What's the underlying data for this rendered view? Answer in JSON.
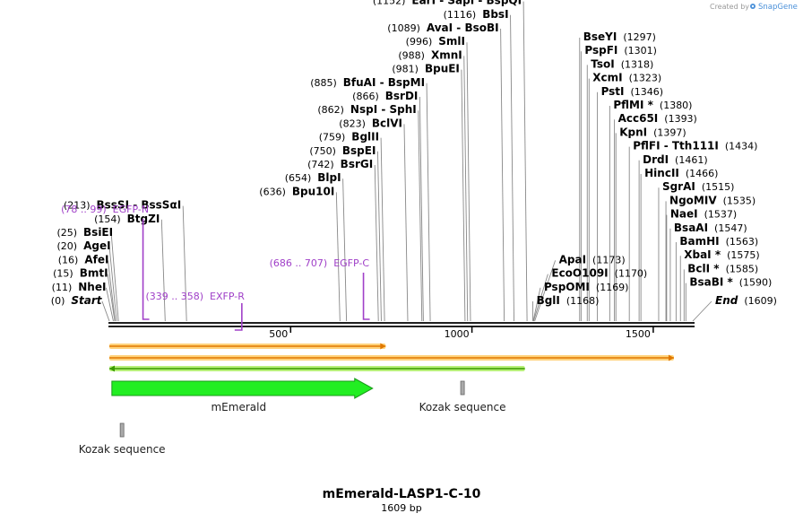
{
  "watermark": {
    "text": "Created by",
    "brand": "SnapGene"
  },
  "plasmid": {
    "name": "mEmerald-LASP1-C-10",
    "length_label": "1609 bp",
    "length": 1609
  },
  "ticks": [
    {
      "pos": 500,
      "label": "500"
    },
    {
      "pos": 1000,
      "label": "1000"
    },
    {
      "pos": 1500,
      "label": "1500"
    }
  ],
  "left_sites": [
    {
      "name": "Start",
      "pos": 0,
      "pos_label": "(0)",
      "italic": true
    },
    {
      "name": "NheI",
      "pos": 11,
      "pos_label": "(11)"
    },
    {
      "name": "BmtI",
      "pos": 15,
      "pos_label": "(15)"
    },
    {
      "name": "AfeI",
      "pos": 16,
      "pos_label": "(16)"
    },
    {
      "name": "AgeI",
      "pos": 20,
      "pos_label": "(20)"
    },
    {
      "name": "BsiEI",
      "pos": 25,
      "pos_label": "(25)"
    },
    {
      "name": "BtgZI",
      "pos": 154,
      "pos_label": "(154)"
    },
    {
      "name": "BssSI - BssSαI",
      "pos": 213,
      "pos_label": "(213)"
    },
    {
      "name": "Bpu10I",
      "pos": 636,
      "pos_label": "(636)"
    },
    {
      "name": "BlpI",
      "pos": 654,
      "pos_label": "(654)"
    },
    {
      "name": "BsrGI",
      "pos": 742,
      "pos_label": "(742)"
    },
    {
      "name": "BspEI",
      "pos": 750,
      "pos_label": "(750)"
    },
    {
      "name": "BglII",
      "pos": 759,
      "pos_label": "(759)"
    },
    {
      "name": "BclVI",
      "pos": 823,
      "pos_label": "(823)"
    },
    {
      "name": "NspI - SphI",
      "pos": 862,
      "pos_label": "(862)"
    },
    {
      "name": "BsrDI",
      "pos": 866,
      "pos_label": "(866)"
    },
    {
      "name": "BfuAI - BspMI",
      "pos": 885,
      "pos_label": "(885)"
    },
    {
      "name": "BpuEI",
      "pos": 981,
      "pos_label": "(981)"
    },
    {
      "name": "XmnI",
      "pos": 988,
      "pos_label": "(988)"
    },
    {
      "name": "SmlI",
      "pos": 996,
      "pos_label": "(996)"
    },
    {
      "name": "AvaI - BsoBI",
      "pos": 1089,
      "pos_label": "(1089)"
    },
    {
      "name": "BbsI",
      "pos": 1116,
      "pos_label": "(1116)"
    },
    {
      "name": "EarI - SapI - BspQI",
      "pos": 1152,
      "pos_label": "(1152)"
    }
  ],
  "right_sites": [
    {
      "name": "BglI",
      "pos": 1168,
      "pos_label": "(1168)"
    },
    {
      "name": "PspOMI",
      "pos": 1169,
      "pos_label": "(1169)"
    },
    {
      "name": "EcoO109I",
      "pos": 1170,
      "pos_label": "(1170)"
    },
    {
      "name": "ApaI",
      "pos": 1173,
      "pos_label": "(1173)"
    },
    {
      "name": "BseYI",
      "pos": 1297,
      "pos_label": "(1297)"
    },
    {
      "name": "PspFI",
      "pos": 1301,
      "pos_label": "(1301)"
    },
    {
      "name": "TsoI",
      "pos": 1318,
      "pos_label": "(1318)"
    },
    {
      "name": "XcmI",
      "pos": 1323,
      "pos_label": "(1323)"
    },
    {
      "name": "PstI",
      "pos": 1346,
      "pos_label": "(1346)"
    },
    {
      "name": "PflMI *",
      "pos": 1380,
      "pos_label": "(1380)"
    },
    {
      "name": "Acc65I",
      "pos": 1393,
      "pos_label": "(1393)"
    },
    {
      "name": "KpnI",
      "pos": 1397,
      "pos_label": "(1397)"
    },
    {
      "name": "PflFI - Tth111I",
      "pos": 1434,
      "pos_label": "(1434)"
    },
    {
      "name": "DrdI",
      "pos": 1461,
      "pos_label": "(1461)"
    },
    {
      "name": "HincII",
      "pos": 1466,
      "pos_label": "(1466)"
    },
    {
      "name": "SgrAI",
      "pos": 1515,
      "pos_label": "(1515)"
    },
    {
      "name": "NgoMIV",
      "pos": 1535,
      "pos_label": "(1535)"
    },
    {
      "name": "NaeI",
      "pos": 1537,
      "pos_label": "(1537)"
    },
    {
      "name": "BsaAI",
      "pos": 1547,
      "pos_label": "(1547)"
    },
    {
      "name": "BamHI",
      "pos": 1563,
      "pos_label": "(1563)"
    },
    {
      "name": "XbaI *",
      "pos": 1575,
      "pos_label": "(1575)"
    },
    {
      "name": "BclI *",
      "pos": 1585,
      "pos_label": "(1585)"
    },
    {
      "name": "BsaBI *",
      "pos": 1590,
      "pos_label": "(1590)"
    },
    {
      "name": "End",
      "pos": 1609,
      "pos_label": "(1609)",
      "italic": true
    }
  ],
  "primers": [
    {
      "name": "EGFP-N",
      "range_label": "(78 .. 99)",
      "start": 78,
      "end": 99,
      "direction": "forward"
    },
    {
      "name": "EXFP-R",
      "range_label": "(339 .. 358)",
      "start": 339,
      "end": 358,
      "direction": "reverse"
    },
    {
      "name": "EGFP-C",
      "range_label": "(686 .. 707)",
      "start": 686,
      "end": 707,
      "direction": "forward"
    }
  ],
  "orfs": [
    {
      "start": 0,
      "end": 762,
      "direction": "forward",
      "color": "#e07800"
    },
    {
      "start": 0,
      "end": 1557,
      "direction": "forward",
      "color": "#e07800"
    },
    {
      "start": 0,
      "end": 1146,
      "direction": "reverse",
      "color": "#3a9a00"
    }
  ],
  "features": [
    {
      "name": "mEmerald",
      "start": 7,
      "end": 726,
      "type": "cds",
      "color": "#22ee22"
    },
    {
      "name": "Kozak sequence",
      "start": 969,
      "end": 979,
      "type": "kozak",
      "color": "#aaaaaa"
    },
    {
      "name": "Kozak sequence",
      "start": 30,
      "end": 40,
      "type": "kozak",
      "color": "#aaaaaa"
    }
  ]
}
